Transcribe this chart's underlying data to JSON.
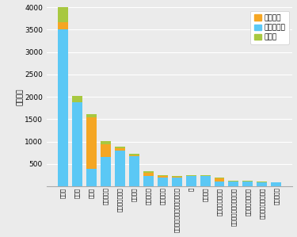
{
  "categories": [
    "注射針",
    "縫合針",
    "翼状針",
    "静脈留置針",
    "薬剤充填注射針",
    "その他針",
    "ランセット",
    "真空採血針",
    "ディスポーザブル外科用メス",
    "刃",
    "血液ガス",
    "再生可外科用メス",
    "何も接続されていない針",
    "カテーテル誘導針",
    "中心静脈カテーテル",
    "点滴ライン"
  ],
  "non_safety": [
    3500,
    1870,
    390,
    650,
    800,
    670,
    230,
    195,
    195,
    225,
    225,
    105,
    115,
    105,
    95,
    85
  ],
  "safety": [
    165,
    0,
    1160,
    295,
    45,
    28,
    75,
    38,
    28,
    0,
    0,
    78,
    0,
    0,
    0,
    0
  ],
  "no_answer": [
    445,
    155,
    55,
    75,
    50,
    38,
    28,
    23,
    18,
    18,
    18,
    18,
    18,
    18,
    13,
    13
  ],
  "color_safety": "#f5a623",
  "color_non_safety": "#5bc8f5",
  "color_no_answer": "#a8c840",
  "ylabel": "（件数）",
  "ylim": [
    0,
    4000
  ],
  "yticks": [
    0,
    500,
    1000,
    1500,
    2000,
    2500,
    3000,
    3500,
    4000
  ],
  "legend_labels": [
    "安全器材",
    "非安全器材",
    "無回答"
  ],
  "bg_color": "#ebebeb"
}
